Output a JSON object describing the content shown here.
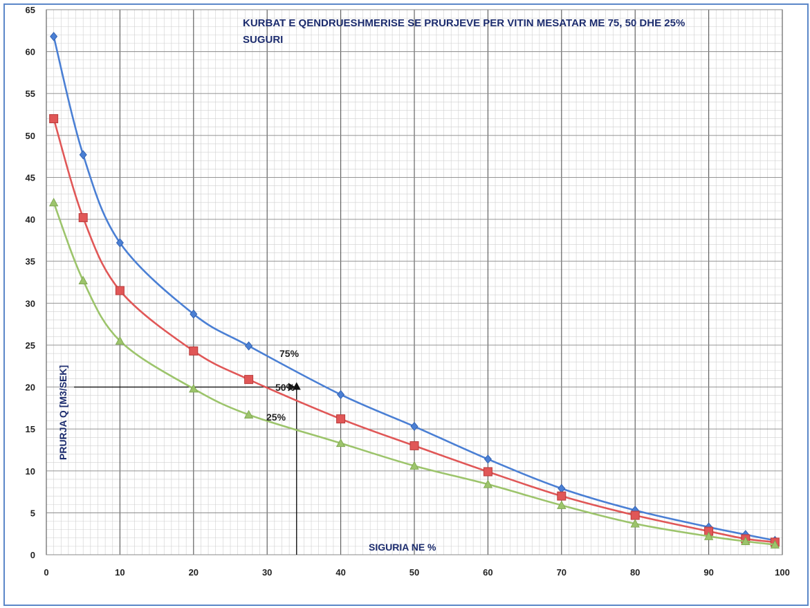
{
  "chart_data": {
    "type": "line",
    "title_line1": "KURBAT E QENDRUESHMERISE SE PRURJEVE PER VITIN MESATAR ME 75, 50 DHE 25%",
    "title_line2": "SUGURI",
    "xlabel": "SIGURIA NE %",
    "ylabel": "PRURJA Q [M3/SEK]",
    "xlim": [
      0,
      100
    ],
    "ylim": [
      0,
      65
    ],
    "x_ticks": [
      0,
      10,
      20,
      30,
      40,
      50,
      60,
      70,
      80,
      90,
      100
    ],
    "y_ticks": [
      0,
      5,
      10,
      15,
      20,
      25,
      30,
      35,
      40,
      45,
      50,
      55,
      60,
      65
    ],
    "grid": true,
    "x": [
      1,
      5,
      10,
      20,
      27.5,
      40,
      50,
      60,
      70,
      80,
      90,
      95,
      99
    ],
    "series": [
      {
        "name": "75%",
        "color": "#4a7fd4",
        "marker": "diamond",
        "values": [
          61.8,
          47.7,
          37.2,
          28.7,
          24.9,
          19.1,
          15.3,
          11.4,
          7.9,
          5.3,
          3.3,
          2.4,
          1.7
        ]
      },
      {
        "name": "50%",
        "color": "#e05757",
        "marker": "square",
        "values": [
          52.0,
          40.2,
          31.5,
          24.3,
          20.9,
          16.2,
          13.0,
          9.9,
          7.0,
          4.7,
          2.8,
          1.9,
          1.5
        ]
      },
      {
        "name": "25%",
        "color": "#9cc46b",
        "marker": "triangle",
        "values": [
          42.0,
          32.7,
          25.5,
          19.8,
          16.7,
          13.3,
          10.6,
          8.4,
          5.9,
          3.7,
          2.2,
          1.6,
          1.2
        ]
      }
    ],
    "annotation": {
      "x": 34,
      "y": 20
    }
  }
}
